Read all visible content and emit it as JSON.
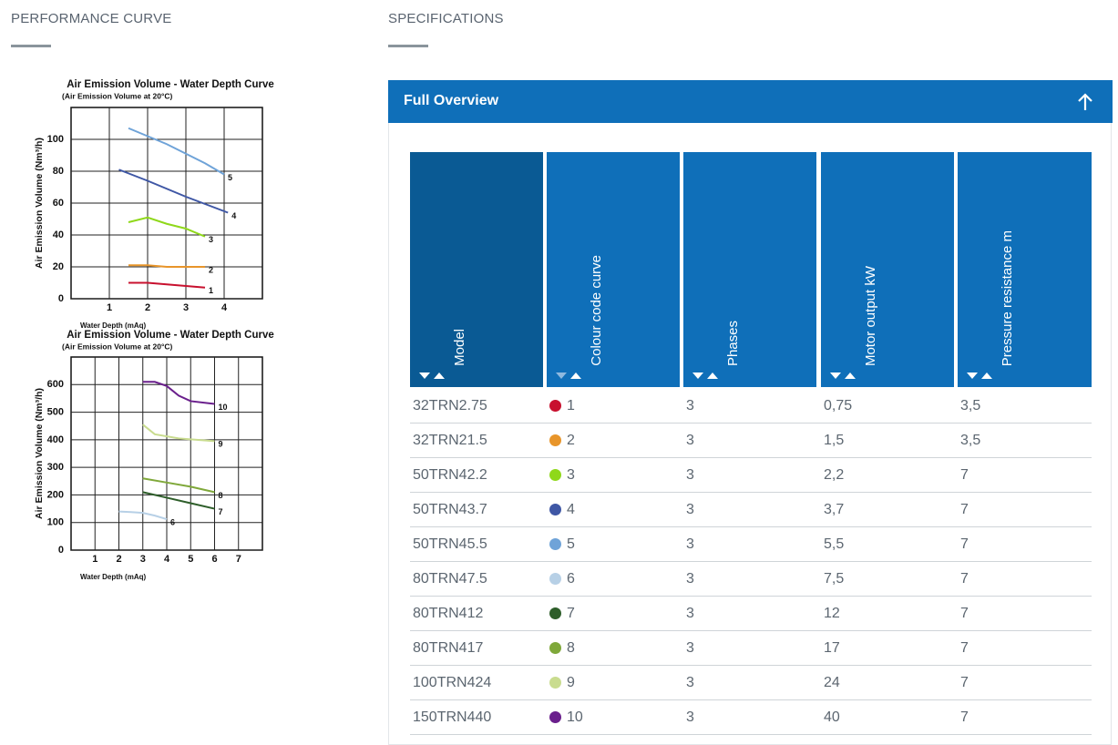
{
  "headings": {
    "left": "PERFORMANCE CURVE",
    "right": "SPECIFICATIONS"
  },
  "panel": {
    "title": "Full Overview"
  },
  "charts": [
    {
      "type": "line",
      "title": "Air Emission Volume - Water Depth Curve",
      "subtitle": "(Air Emission Volume at 20°C)",
      "y_label": "Air Emission Volume (Nm³/h)",
      "x_label": "Water Depth (mAq)",
      "xlim": [
        0,
        5
      ],
      "ylim": [
        0,
        120
      ],
      "xticks": [
        1,
        2,
        3,
        4
      ],
      "yticks": [
        0,
        20,
        40,
        60,
        80,
        100
      ],
      "grid": true,
      "series": [
        {
          "name": "1",
          "color": "#c8102e",
          "x": [
            1.5,
            2,
            2.5,
            3,
            3.5
          ],
          "values": [
            10,
            10,
            9,
            8,
            7
          ]
        },
        {
          "name": "2",
          "color": "#e8952a",
          "x": [
            1.5,
            2,
            2.5,
            3,
            3.5
          ],
          "values": [
            21,
            21,
            20,
            20,
            20
          ]
        },
        {
          "name": "3",
          "color": "#8fd81a",
          "x": [
            1.5,
            2,
            2.5,
            3,
            3.5
          ],
          "values": [
            48,
            51,
            47,
            44,
            39
          ]
        },
        {
          "name": "4",
          "color": "#3f57a5",
          "x": [
            1.25,
            2,
            3,
            4.1
          ],
          "values": [
            81,
            74,
            64,
            54
          ]
        },
        {
          "name": "5",
          "color": "#6fa3d8",
          "x": [
            1.5,
            2,
            2.5,
            3,
            3.5,
            4
          ],
          "values": [
            107,
            102,
            97,
            91,
            85,
            78
          ]
        }
      ]
    },
    {
      "type": "line",
      "title": "Air Emission Volume - Water Depth Curve",
      "subtitle": "(Air Emission Volume at 20°C)",
      "y_label": "Air Emission Volume (Nm³/h)",
      "x_label": "Water Depth (mAq)",
      "xlim": [
        0,
        8
      ],
      "ylim": [
        0,
        700
      ],
      "xticks": [
        1,
        2,
        3,
        4,
        5,
        6,
        7
      ],
      "yticks": [
        0,
        100,
        200,
        300,
        400,
        500,
        600
      ],
      "grid": true,
      "series": [
        {
          "name": "6",
          "color": "#b7d0e6",
          "x": [
            2,
            2.5,
            3,
            3.5,
            4
          ],
          "values": [
            140,
            138,
            135,
            125,
            112
          ]
        },
        {
          "name": "7",
          "color": "#2e5e2a",
          "x": [
            3,
            4,
            5,
            6
          ],
          "values": [
            210,
            190,
            170,
            150
          ]
        },
        {
          "name": "8",
          "color": "#7fa83a",
          "x": [
            3,
            4,
            5,
            6
          ],
          "values": [
            260,
            245,
            230,
            210
          ]
        },
        {
          "name": "9",
          "color": "#c9dc8f",
          "x": [
            3,
            3.5,
            4.5,
            6
          ],
          "values": [
            455,
            420,
            405,
            395
          ]
        },
        {
          "name": "10",
          "color": "#6a1f8c",
          "x": [
            3,
            3.5,
            4,
            4.5,
            5,
            6
          ],
          "values": [
            610,
            610,
            595,
            560,
            540,
            530
          ]
        }
      ]
    }
  ],
  "table": {
    "columns": [
      "Model",
      "Colour code curve",
      "Phases",
      "Motor output kW",
      "Pressure resistance m"
    ],
    "rows": [
      {
        "cells": [
          "32TRN2.75",
          "1",
          "3",
          "0,75",
          "3,5"
        ],
        "color": "#c8102e"
      },
      {
        "cells": [
          "32TRN21.5",
          "2",
          "3",
          "1,5",
          "3,5"
        ],
        "color": "#e8952a"
      },
      {
        "cells": [
          "50TRN42.2",
          "3",
          "3",
          "2,2",
          "7"
        ],
        "color": "#8fd81a"
      },
      {
        "cells": [
          "50TRN43.7",
          "4",
          "3",
          "3,7",
          "7"
        ],
        "color": "#3f57a5"
      },
      {
        "cells": [
          "50TRN45.5",
          "5",
          "3",
          "5,5",
          "7"
        ],
        "color": "#6fa3d8"
      },
      {
        "cells": [
          "80TRN47.5",
          "6",
          "3",
          "7,5",
          "7"
        ],
        "color": "#b7d0e6"
      },
      {
        "cells": [
          "80TRN412",
          "7",
          "3",
          "12",
          "7"
        ],
        "color": "#2e5e2a"
      },
      {
        "cells": [
          "80TRN417",
          "8",
          "3",
          "17",
          "7"
        ],
        "color": "#7fa83a"
      },
      {
        "cells": [
          "100TRN424",
          "9",
          "3",
          "24",
          "7"
        ],
        "color": "#c9dc8f"
      },
      {
        "cells": [
          "150TRN440",
          "10",
          "3",
          "40",
          "7"
        ],
        "color": "#6a1f8c"
      }
    ]
  }
}
